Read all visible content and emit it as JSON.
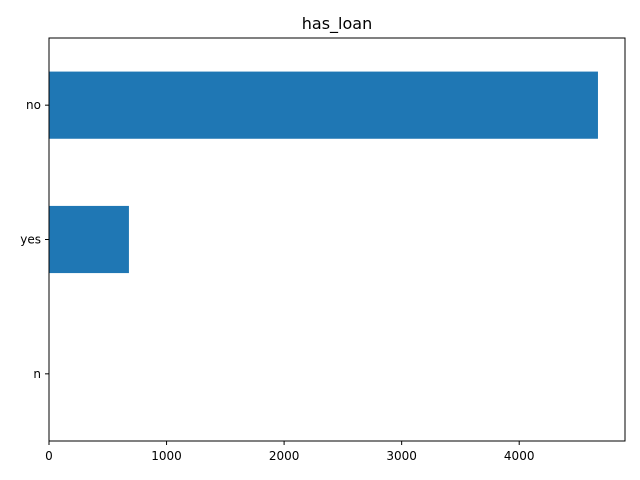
{
  "chart_data": {
    "type": "bar",
    "orientation": "horizontal",
    "title": "has_loan",
    "xlabel": "",
    "ylabel": "",
    "categories": [
      "no",
      "yes",
      "n"
    ],
    "values": [
      4670,
      680,
      1
    ],
    "xlim": [
      0,
      4900
    ],
    "xticks": [
      0,
      1000,
      2000,
      3000,
      4000
    ],
    "grid": false,
    "colors": {
      "bar": "#1f77b4"
    }
  }
}
